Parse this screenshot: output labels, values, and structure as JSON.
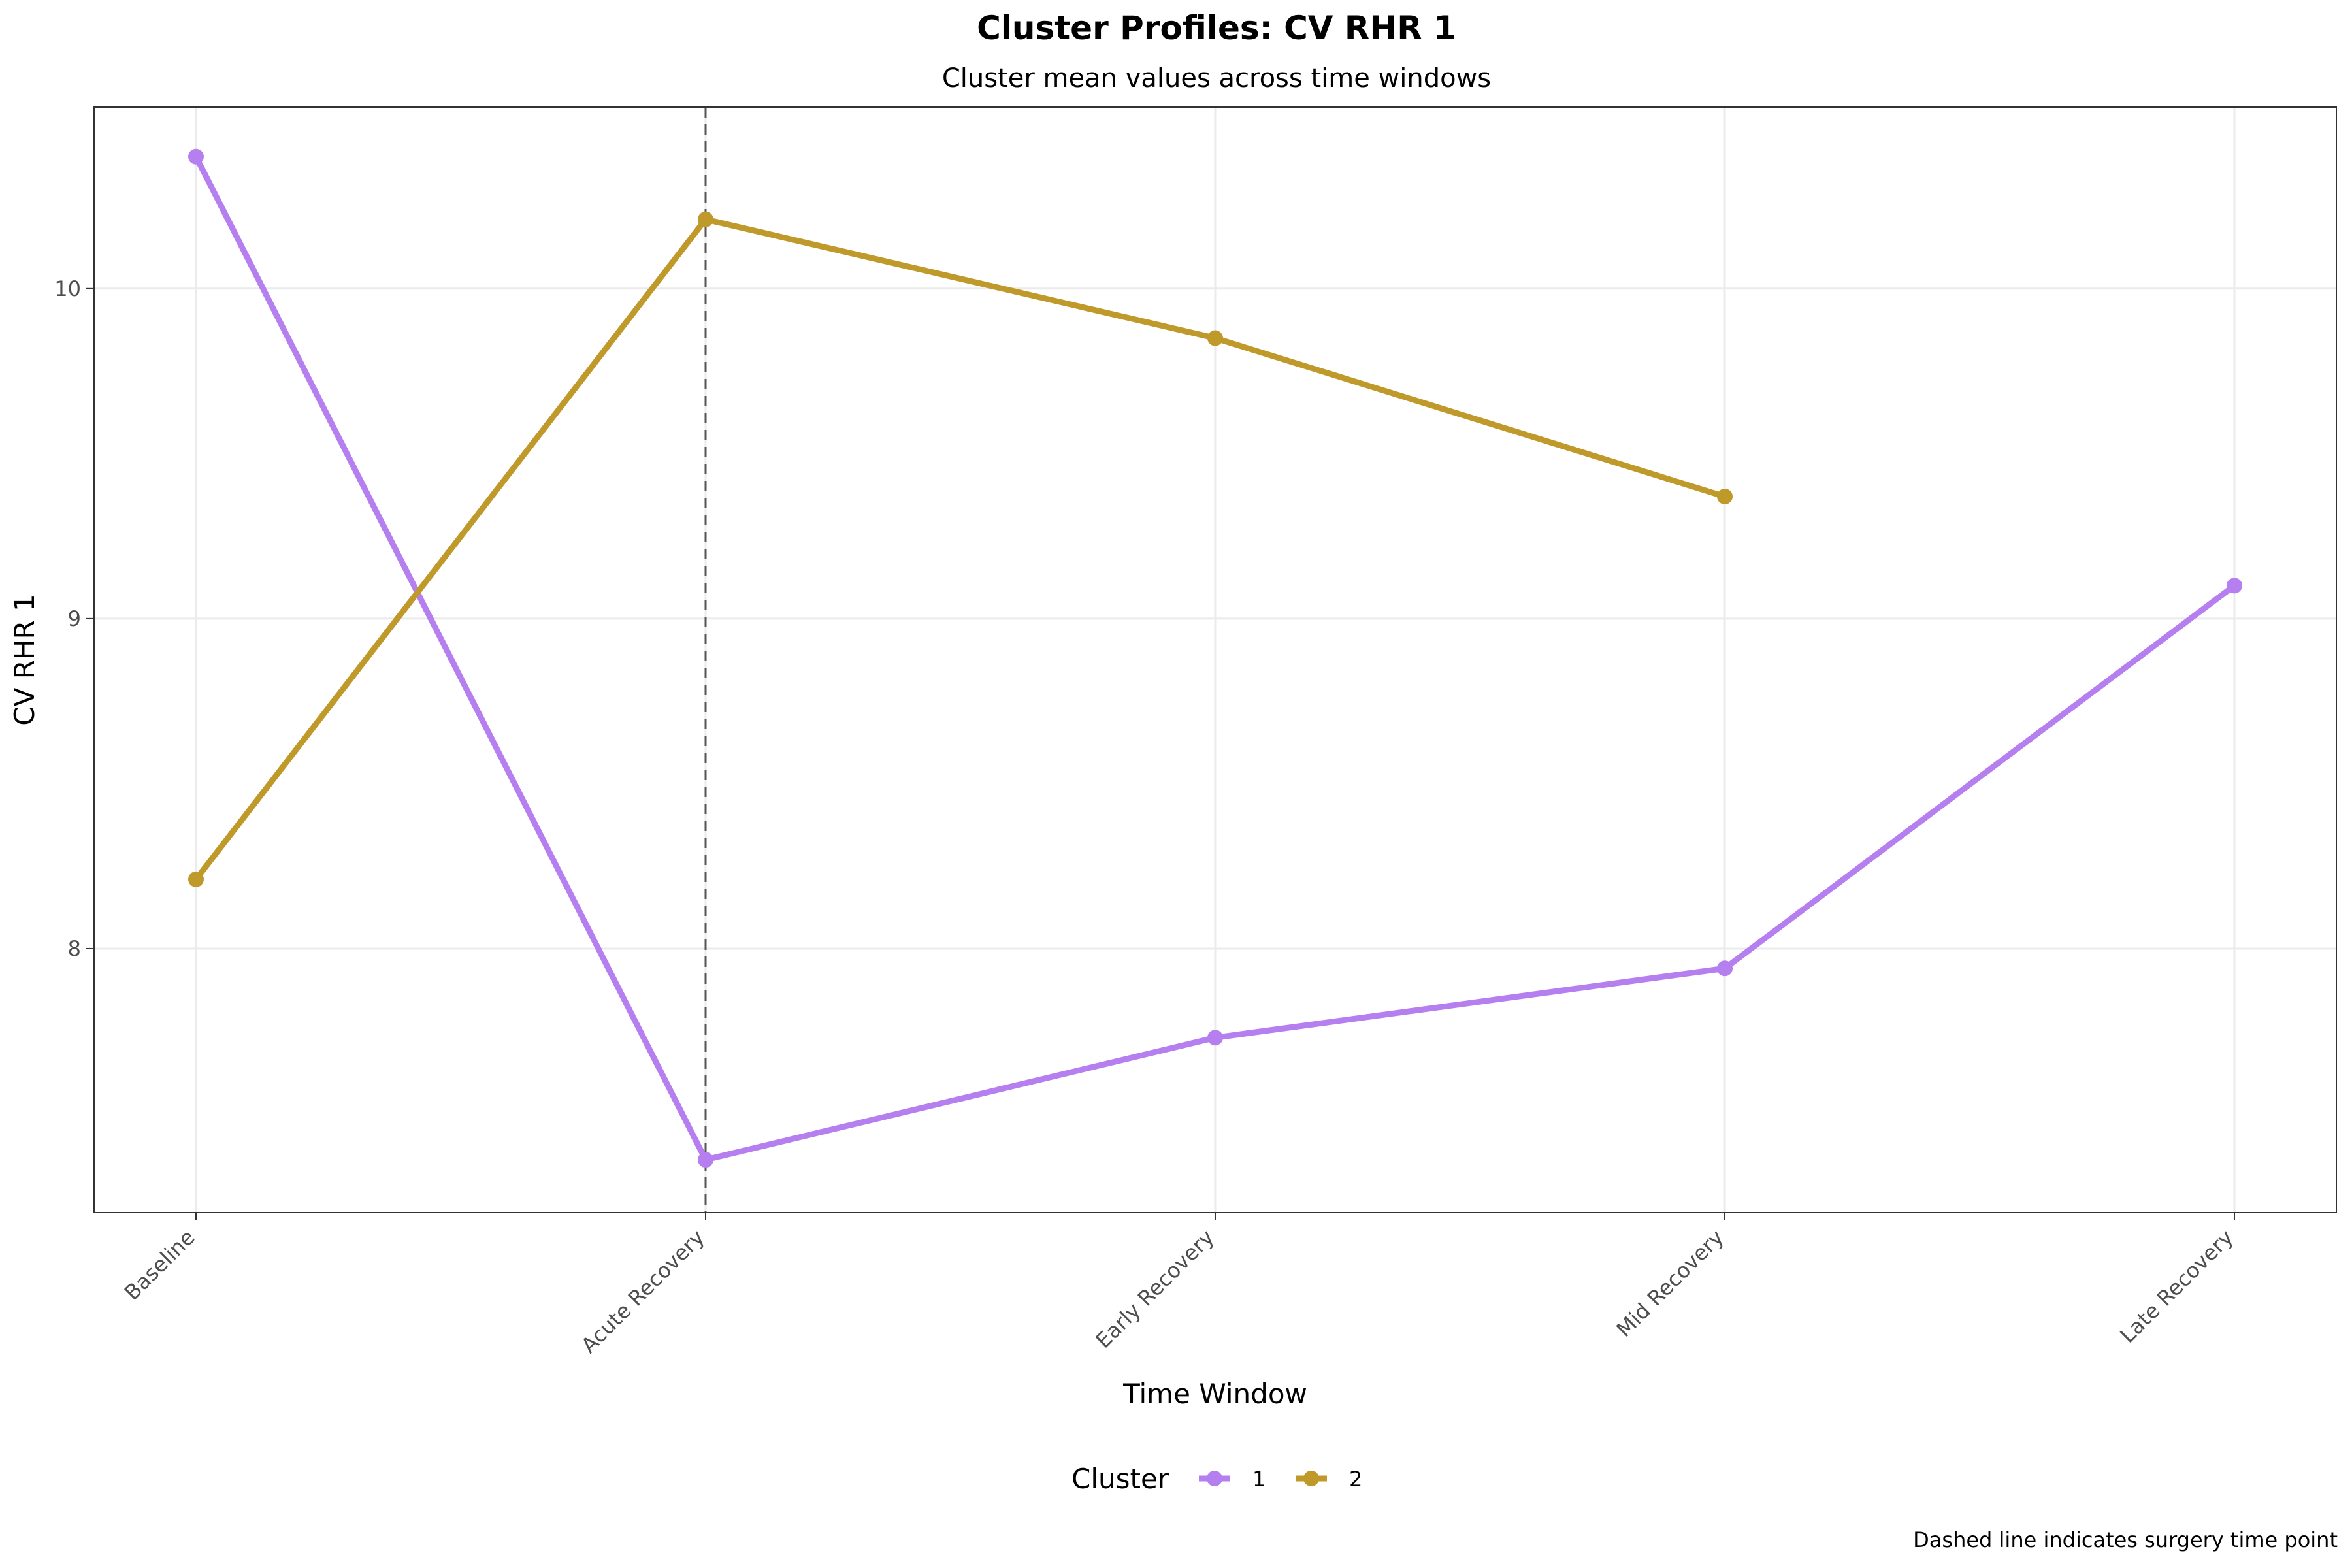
{
  "chart_data": {
    "type": "line",
    "title": "Cluster Profiles: CV RHR 1",
    "subtitle": "Cluster mean values across time windows",
    "xlabel": "Time Window",
    "ylabel": "CV RHR 1",
    "categories": [
      "Baseline",
      "Acute Recovery",
      "Early Recovery",
      "Mid Recovery",
      "Late Recovery"
    ],
    "ylim": [
      7.2,
      10.55
    ],
    "yticks": [
      8,
      9,
      10
    ],
    "grid": true,
    "reference_line": {
      "category": "Acute Recovery",
      "style": "dashed"
    },
    "legend": {
      "title": "Cluster",
      "position": "bottom"
    },
    "series": [
      {
        "name": "1",
        "color": "#b57ff0",
        "values": [
          10.4,
          7.36,
          7.73,
          7.94,
          9.1
        ]
      },
      {
        "name": "2",
        "color": "#bf9a2b",
        "values": [
          8.21,
          10.21,
          9.85,
          9.37,
          null
        ]
      }
    ],
    "caption": "Dashed line indicates surgery time point"
  }
}
